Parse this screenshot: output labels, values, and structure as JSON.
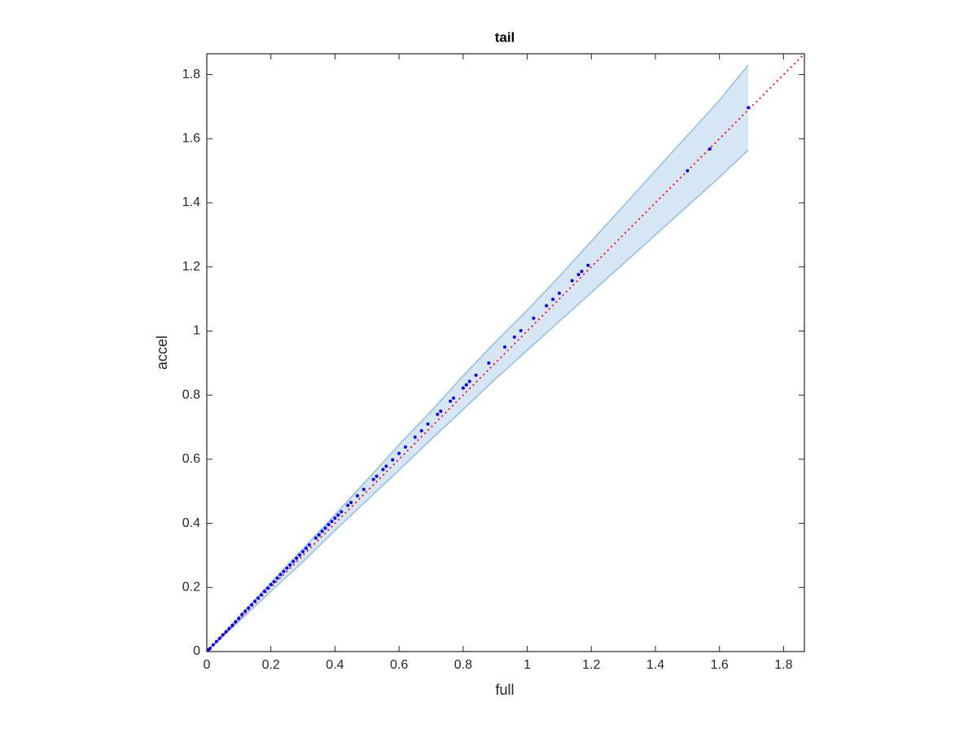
{
  "chart_data": {
    "type": "scatter",
    "title": "tail",
    "x_label": "full",
    "y_label": "accel",
    "xlim": [
      0,
      1.865
    ],
    "ylim": [
      0,
      1.865
    ],
    "xticks": [
      0,
      0.2,
      0.4,
      0.6,
      0.8,
      1,
      1.2,
      1.4,
      1.6,
      1.8
    ],
    "yticks": [
      0,
      0.2,
      0.4,
      0.6,
      0.8,
      1,
      1.2,
      1.4,
      1.6,
      1.8
    ],
    "band": {
      "color": "#d6e6f4",
      "edge_color": "#8fbfe0",
      "x": [
        0,
        0.1,
        0.2,
        0.3,
        0.4,
        0.5,
        0.6,
        0.7,
        0.8,
        0.9,
        1.0,
        1.1,
        1.2,
        1.3,
        1.4,
        1.5,
        1.6,
        1.69
      ],
      "upper": [
        0,
        0.108,
        0.214,
        0.32,
        0.427,
        0.535,
        0.645,
        0.75,
        0.86,
        0.965,
        1.065,
        1.17,
        1.28,
        1.39,
        1.5,
        1.61,
        1.72,
        1.83
      ],
      "lower": [
        0,
        0.094,
        0.188,
        0.28,
        0.378,
        0.472,
        0.566,
        0.662,
        0.755,
        0.85,
        0.94,
        1.03,
        1.12,
        1.21,
        1.3,
        1.39,
        1.48,
        1.565
      ]
    },
    "ref_line": {
      "color": "#ff0000",
      "x": [
        0,
        1.865
      ],
      "y": [
        0,
        1.865
      ]
    },
    "points": {
      "color": "#0000ff",
      "x": [
        0.005,
        0.01,
        0.02,
        0.03,
        0.04,
        0.05,
        0.06,
        0.07,
        0.08,
        0.09,
        0.1,
        0.11,
        0.12,
        0.13,
        0.14,
        0.15,
        0.16,
        0.17,
        0.18,
        0.19,
        0.2,
        0.21,
        0.22,
        0.23,
        0.24,
        0.25,
        0.26,
        0.27,
        0.28,
        0.29,
        0.3,
        0.31,
        0.32,
        0.34,
        0.35,
        0.36,
        0.37,
        0.38,
        0.39,
        0.4,
        0.41,
        0.42,
        0.44,
        0.45,
        0.47,
        0.49,
        0.52,
        0.53,
        0.55,
        0.56,
        0.58,
        0.6,
        0.62,
        0.65,
        0.67,
        0.69,
        0.72,
        0.73,
        0.76,
        0.77,
        0.8,
        0.81,
        0.82,
        0.84,
        0.88,
        0.93,
        0.96,
        0.98,
        1.02,
        1.06,
        1.08,
        1.1,
        1.14,
        1.16,
        1.17,
        1.19,
        1.5,
        1.57,
        1.69
      ],
      "y": [
        0.005,
        0.01,
        0.021,
        0.031,
        0.041,
        0.052,
        0.062,
        0.072,
        0.082,
        0.093,
        0.104,
        0.116,
        0.126,
        0.136,
        0.146,
        0.157,
        0.167,
        0.177,
        0.188,
        0.198,
        0.209,
        0.218,
        0.229,
        0.24,
        0.25,
        0.26,
        0.27,
        0.281,
        0.291,
        0.301,
        0.312,
        0.322,
        0.333,
        0.354,
        0.364,
        0.375,
        0.385,
        0.396,
        0.406,
        0.416,
        0.426,
        0.436,
        0.456,
        0.465,
        0.486,
        0.506,
        0.537,
        0.547,
        0.568,
        0.578,
        0.598,
        0.618,
        0.638,
        0.669,
        0.689,
        0.71,
        0.74,
        0.75,
        0.781,
        0.791,
        0.822,
        0.832,
        0.843,
        0.862,
        0.9,
        0.95,
        0.981,
        1.001,
        1.04,
        1.079,
        1.099,
        1.118,
        1.157,
        1.176,
        1.186,
        1.205,
        1.5,
        1.568,
        1.697
      ]
    }
  }
}
